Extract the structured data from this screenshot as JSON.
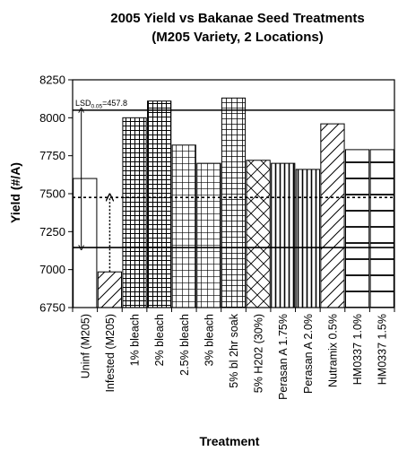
{
  "chart_data": {
    "type": "bar",
    "title": "2005 Yield vs Bakanae Seed Treatments",
    "subtitle": "(M205 Variety, 2 Locations)",
    "xlabel": "Treatment",
    "ylabel": "Yield (#/A)",
    "ylim": [
      6750,
      8250
    ],
    "yticks": [
      6750,
      7000,
      7250,
      7500,
      7750,
      8000,
      8250
    ],
    "ytick_labels": [
      "6750",
      "7000",
      "7250",
      "7500",
      "7750",
      "8000",
      "8250"
    ],
    "categories": [
      "Uninf (M205)",
      "Infested (M205)",
      "1% bleach",
      "2% bleach",
      "2.5% bleach",
      "3% bleach",
      "5% bl 2hr soak",
      "5% H202 (30%)",
      "Perasan A 1.75%",
      "Perasan A 2.0%",
      "Nutramix 0.5%",
      "HM0337 1.0%",
      "HM0337 1.5%"
    ],
    "values": [
      7600,
      6985,
      8000,
      8110,
      7820,
      7700,
      8130,
      7720,
      7700,
      7660,
      7960,
      7790,
      7790
    ],
    "patterns": [
      "none",
      "diagonal",
      "grid-dense",
      "grid-dense",
      "grid-medium",
      "grid-medium",
      "grid-wide",
      "crosshatch",
      "vertical",
      "vertical",
      "diagonal",
      "horizontal",
      "horizontal"
    ],
    "reference_lines": [
      {
        "value": 8050,
        "style": "solid"
      },
      {
        "value": 7475,
        "style": "dotted"
      },
      {
        "value": 7145,
        "style": "solid"
      }
    ],
    "lsd_label": {
      "prefix": "LSD",
      "subscript": "0.05",
      "suffix": "=457.8"
    },
    "grid": false,
    "legend": "none"
  }
}
